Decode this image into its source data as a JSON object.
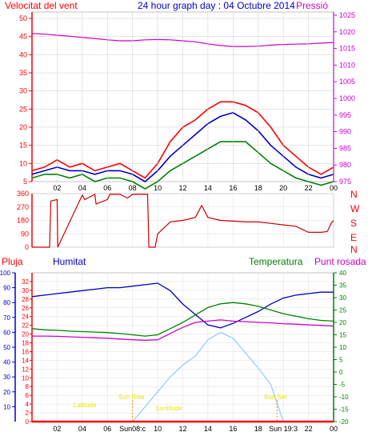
{
  "header": {
    "title": "24 hour graph day : 04 Octubre 2014",
    "wind_label": "Velocitat del vent",
    "pressure_label": "Pressió"
  },
  "lower_labels": {
    "rain": "Pluja",
    "humidity": "Humitat",
    "temperature": "Temperatura",
    "dewpoint": "Punt rosada"
  },
  "sun_labels": {
    "latitude": "Latitude",
    "longitude": "Lontitude",
    "sunrise": "Sun Rise",
    "sunset": "Sun Set",
    "sunrise_time": "Sun08:c",
    "sunset_time": "Sun 19:3"
  },
  "x_ticks": [
    "02",
    "04",
    "06",
    "08",
    "10",
    "12",
    "14",
    "16",
    "18",
    "20",
    "22",
    "00"
  ],
  "colors": {
    "wind_gust": "#ff0000",
    "wind_avg": "#0000c0",
    "wind_low": "#008000",
    "pressure": "#cc00cc",
    "direction": "#cc0000",
    "humidity": "#0000c0",
    "temperature": "#008000",
    "dewpoint": "#cc00cc",
    "rain": "#ff0000",
    "solar": "#99ccff",
    "axis_red": "#ff0000",
    "axis_blue": "#0000cc",
    "axis_green": "#008000"
  },
  "chart_data": [
    {
      "type": "line",
      "title": "24 hour graph day : 04 Octubre 2014",
      "x_hours": [
        0,
        1,
        2,
        3,
        4,
        5,
        6,
        7,
        8,
        9,
        10,
        11,
        12,
        13,
        14,
        15,
        16,
        17,
        18,
        19,
        20,
        21,
        22,
        23,
        24
      ],
      "y_left_ticks": [
        5,
        10,
        15,
        20,
        25,
        30,
        35,
        40,
        45,
        50
      ],
      "y_left_min": 5,
      "y_left_max": 50,
      "y_right_ticks": [
        975,
        980,
        985,
        990,
        995,
        1000,
        1005,
        1010,
        1015,
        1020,
        1025
      ],
      "y_right_min": 975,
      "y_right_max": 1025,
      "series": [
        {
          "name": "Velocitat del vent",
          "key": "gust",
          "axis": "left",
          "values": [
            8,
            9,
            11,
            9,
            10,
            8,
            9,
            10,
            8,
            6,
            10,
            16,
            20,
            22,
            25,
            27,
            27,
            26,
            24,
            20,
            15,
            12,
            9,
            7,
            9
          ]
        },
        {
          "name": "",
          "key": "avg",
          "axis": "left",
          "values": [
            7,
            8,
            9,
            8,
            8,
            7,
            8,
            8,
            7,
            5,
            8,
            12,
            15,
            18,
            21,
            23,
            24,
            22,
            19,
            15,
            12,
            9,
            7,
            6,
            7
          ]
        },
        {
          "name": "",
          "key": "low",
          "axis": "left",
          "values": [
            6,
            7,
            7,
            6,
            7,
            5,
            6,
            6,
            5,
            3,
            5,
            8,
            10,
            12,
            14,
            16,
            16,
            16,
            13,
            10,
            8,
            6,
            5,
            4,
            5
          ]
        },
        {
          "name": "Pressió",
          "key": "pressure",
          "axis": "right",
          "values": [
            1019.5,
            1019.3,
            1019.0,
            1018.7,
            1018.3,
            1018.0,
            1017.6,
            1017.3,
            1017.3,
            1017.6,
            1017.7,
            1017.6,
            1017.3,
            1017.0,
            1016.4,
            1015.9,
            1015.6,
            1015.6,
            1015.7,
            1016.0,
            1016.2,
            1016.3,
            1016.4,
            1016.6,
            1016.8
          ]
        }
      ]
    },
    {
      "type": "line",
      "x_hours": [
        0,
        0.6,
        1.4,
        1.5,
        2.0,
        2.05,
        4,
        4.2,
        5,
        5.1,
        6,
        6.2,
        7,
        7.6,
        8.0,
        9.2,
        9.3,
        9.8,
        10.0,
        11,
        12,
        13,
        13.5,
        14,
        15,
        16,
        17,
        18,
        19,
        20,
        21,
        21.5,
        22,
        23,
        23.5,
        23.8,
        24
      ],
      "direction_deg": [
        0,
        0,
        0,
        310,
        320,
        0,
        350,
        320,
        355,
        290,
        320,
        355,
        355,
        330,
        355,
        355,
        0,
        0,
        90,
        170,
        180,
        200,
        280,
        200,
        180,
        175,
        170,
        170,
        160,
        150,
        140,
        120,
        100,
        100,
        105,
        160,
        180
      ],
      "y_ticks_deg": [
        0,
        90,
        180,
        270,
        360
      ],
      "compass_labels": [
        "N",
        "W",
        "S",
        "E",
        "N"
      ]
    },
    {
      "type": "line",
      "x_hours": [
        0,
        1,
        2,
        3,
        4,
        5,
        6,
        7,
        8,
        9,
        10,
        11,
        12,
        13,
        14,
        15,
        16,
        17,
        18,
        19,
        20,
        21,
        22,
        23,
        24
      ],
      "humidity_axis_ticks": [
        10,
        20,
        30,
        40,
        50,
        60,
        70,
        80,
        90,
        100
      ],
      "humidity_axis_min": 0,
      "humidity_axis_max": 100,
      "rain_axis_ticks": [
        0,
        2,
        4,
        6,
        8,
        10,
        12,
        14,
        16,
        18,
        20,
        22,
        24,
        26,
        28,
        30,
        32
      ],
      "rain_axis_min": 0,
      "rain_axis_max": 34,
      "temp_axis_ticks": [
        -20,
        -15,
        -10,
        -5,
        0,
        5,
        10,
        15,
        20,
        25,
        30,
        35,
        40
      ],
      "temp_axis_min": -20,
      "temp_axis_max": 40,
      "series": [
        {
          "name": "Humitat",
          "key": "humidity",
          "axis": "humidity",
          "values": [
            84,
            85,
            86,
            87,
            88,
            89,
            90,
            90,
            91,
            92,
            93,
            88,
            79,
            72,
            65,
            63,
            66,
            70,
            74,
            79,
            83,
            85,
            86,
            87,
            87
          ]
        },
        {
          "name": "Temperatura",
          "key": "temperature",
          "axis": "temp",
          "values": [
            17.5,
            17.0,
            16.8,
            16.5,
            16.3,
            16.1,
            15.9,
            15.5,
            15.0,
            14.5,
            15.0,
            17.5,
            20.0,
            23.0,
            26.0,
            27.5,
            28.0,
            27.5,
            26.5,
            25.0,
            23.5,
            22.5,
            21.5,
            20.8,
            20.5
          ]
        },
        {
          "name": "Punt rosada",
          "key": "dewpoint",
          "axis": "temp",
          "values": [
            14.5,
            14.5,
            14.4,
            14.2,
            14.0,
            13.8,
            13.6,
            13.3,
            13.0,
            12.8,
            13.0,
            15.5,
            18.0,
            20.0,
            20.5,
            21.0,
            20.5,
            20.3,
            20.0,
            19.8,
            19.5,
            19.3,
            19.0,
            18.8,
            18.5
          ]
        },
        {
          "name": "",
          "key": "solar",
          "axis": "humidity",
          "values": [
            0,
            0,
            0,
            0,
            0,
            0,
            0,
            0,
            0,
            10,
            20,
            30,
            38,
            44,
            55,
            60,
            56,
            46,
            36,
            25,
            0,
            0,
            0,
            0,
            0
          ]
        },
        {
          "name": "Pluja",
          "key": "rain",
          "axis": "rain",
          "values": [
            0,
            0,
            0,
            0,
            0,
            0,
            0,
            0,
            0,
            0,
            0,
            0,
            0,
            0,
            0,
            0,
            0,
            0,
            0,
            0,
            0,
            0,
            0,
            0,
            0
          ]
        }
      ],
      "sunrise_hour": 8.0,
      "sunset_hour": 19.5
    }
  ]
}
